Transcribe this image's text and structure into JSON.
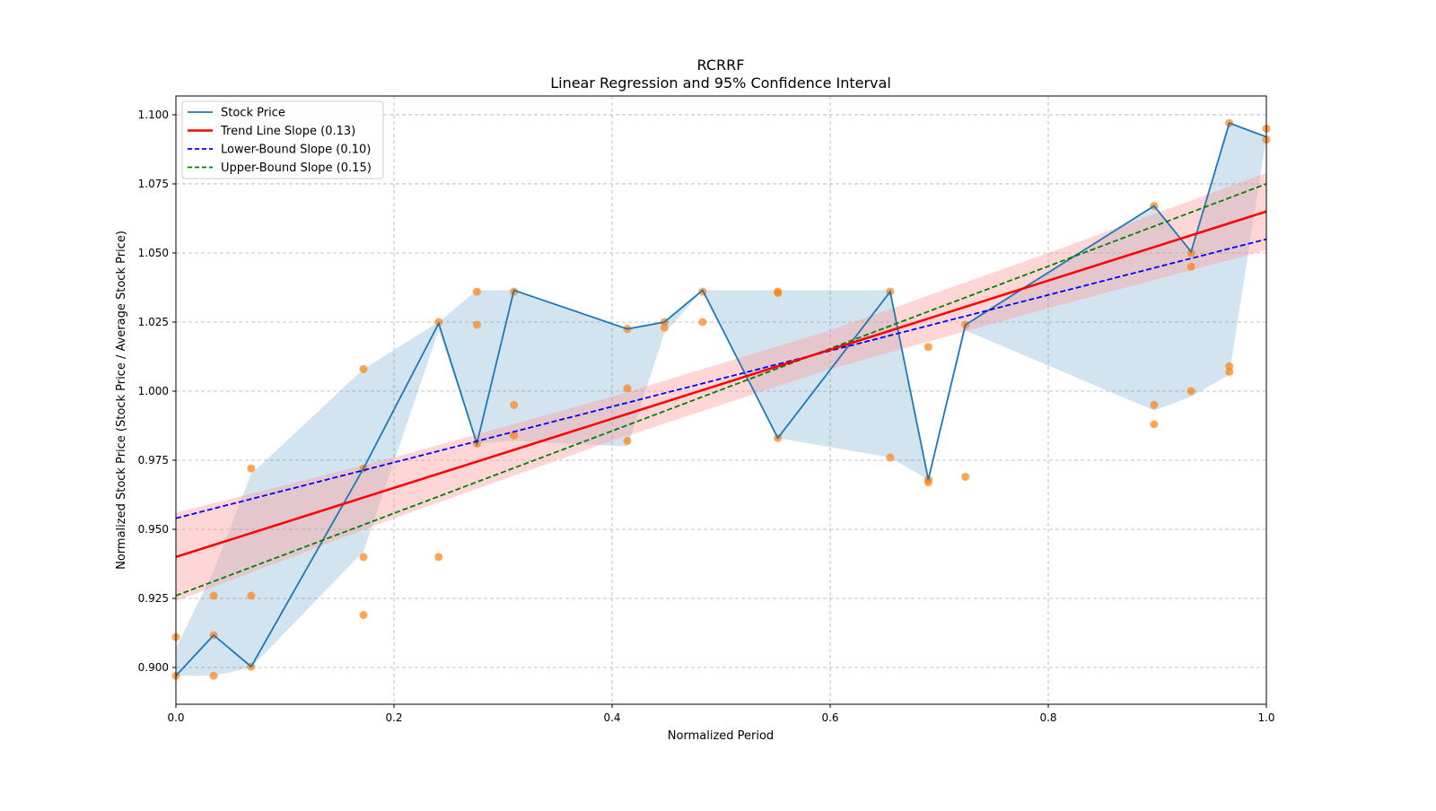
{
  "chart_data": {
    "type": "line",
    "title": "RCRRF",
    "subtitle": "Linear Regression and 95% Confidence Interval",
    "xlabel": "Normalized Period",
    "ylabel": "Normalized Stock Price (Stock Price / Average Stock Price)",
    "xlim": [
      0,
      1
    ],
    "ylim": [
      0.8867,
      1.1068
    ],
    "xticks": [
      0,
      0.2,
      0.4,
      0.6,
      0.8,
      1.0
    ],
    "xtick_labels": [
      "0.0",
      "0.2",
      "0.4",
      "0.6",
      "0.8",
      "1.0"
    ],
    "yticks": [
      0.9,
      0.925,
      0.95,
      0.975,
      1.0,
      1.025,
      1.05,
      1.075,
      1.1
    ],
    "ytick_labels": [
      "0.900",
      "0.925",
      "0.950",
      "0.975",
      "1.000",
      "1.025",
      "1.050",
      "1.075",
      "1.100"
    ],
    "grid": true,
    "legend_position": "top-left",
    "legend": [
      {
        "label": "Stock Price",
        "color": "#1f77b4",
        "style": "solid"
      },
      {
        "label": "Trend Line Slope (0.13)",
        "color": "#ff0000",
        "style": "solid"
      },
      {
        "label": "Lower-Bound Slope (0.10)",
        "color": "#0000ff",
        "style": "dashed"
      },
      {
        "label": "Upper-Bound Slope (0.15)",
        "color": "#008000",
        "style": "dashed"
      }
    ],
    "stock_price": {
      "x": [
        0,
        0.0346,
        0.069,
        0.172,
        0.241,
        0.276,
        0.31,
        0.414,
        0.448,
        0.483,
        0.552,
        0.655,
        0.69,
        0.724,
        0.897,
        0.931,
        0.966,
        1.0
      ],
      "y": [
        0.897,
        0.9117,
        0.9003,
        0.972,
        1.0245,
        0.981,
        1.0365,
        1.0225,
        1.025,
        1.0365,
        0.983,
        1.036,
        0.968,
        1.024,
        1.067,
        1.0505,
        1.097,
        1.092
      ]
    },
    "stock_band": {
      "x": [
        0,
        0.0346,
        0.069,
        0.172,
        0.241,
        0.276,
        0.31,
        0.414,
        0.448,
        0.483,
        0.552,
        0.655,
        0.69,
        0.724,
        0.897,
        0.931,
        0.966,
        1.0
      ],
      "upper": [
        0.907,
        0.935,
        0.97,
        1.008,
        1.025,
        1.0365,
        1.0365,
        1.0225,
        1.025,
        1.0365,
        1.0365,
        1.0365,
        0.968,
        1.024,
        1.067,
        1.0505,
        1.097,
        1.092
      ],
      "lower": [
        0.897,
        0.897,
        0.9,
        0.942,
        1.022,
        0.981,
        0.982,
        0.98,
        1.021,
        1.0365,
        0.983,
        0.976,
        0.968,
        1.022,
        0.993,
        0.998,
        1.006,
        1.092
      ],
      "color": "#1f77b4"
    },
    "scatter": {
      "color": "#ff7f0e",
      "points": [
        [
          0,
          0.911
        ],
        [
          0,
          0.897
        ],
        [
          0.0346,
          0.9117
        ],
        [
          0.0346,
          0.926
        ],
        [
          0.0346,
          0.897
        ],
        [
          0.069,
          0.972
        ],
        [
          0.069,
          0.926
        ],
        [
          0.069,
          0.9003
        ],
        [
          0.172,
          1.008
        ],
        [
          0.172,
          0.972
        ],
        [
          0.172,
          0.94
        ],
        [
          0.172,
          0.919
        ],
        [
          0.241,
          1.025
        ],
        [
          0.241,
          0.94
        ],
        [
          0.276,
          1.036
        ],
        [
          0.276,
          1.024
        ],
        [
          0.276,
          0.981
        ],
        [
          0.31,
          1.036
        ],
        [
          0.31,
          0.995
        ],
        [
          0.31,
          0.984
        ],
        [
          0.414,
          1.0225
        ],
        [
          0.414,
          1.001
        ],
        [
          0.414,
          0.982
        ],
        [
          0.448,
          1.025
        ],
        [
          0.448,
          1.023
        ],
        [
          0.483,
          1.036
        ],
        [
          0.483,
          1.025
        ],
        [
          0.552,
          1.036
        ],
        [
          0.552,
          1.0355
        ],
        [
          0.552,
          0.983
        ],
        [
          0.655,
          1.036
        ],
        [
          0.655,
          0.976
        ],
        [
          0.69,
          1.016
        ],
        [
          0.69,
          0.968
        ],
        [
          0.69,
          0.967
        ],
        [
          0.724,
          1.024
        ],
        [
          0.724,
          0.969
        ],
        [
          0.897,
          1.067
        ],
        [
          0.897,
          0.995
        ],
        [
          0.897,
          0.988
        ],
        [
          0.931,
          1.05
        ],
        [
          0.931,
          1.045
        ],
        [
          0.931,
          1.0
        ],
        [
          0.966,
          1.097
        ],
        [
          0.966,
          1.009
        ],
        [
          0.966,
          1.007
        ],
        [
          1.0,
          1.095
        ],
        [
          1.0,
          1.091
        ]
      ]
    },
    "trend_line": {
      "slope": 0.125,
      "intercept": 0.94,
      "color": "#ff0000"
    },
    "lower_bound_line": {
      "slope": 0.101,
      "intercept": 0.954,
      "color": "#0000ff"
    },
    "upper_bound_line": {
      "slope": 0.149,
      "intercept": 0.926,
      "color": "#008000"
    },
    "confidence_interval": {
      "x": [
        0,
        0.2,
        0.4,
        0.6,
        0.8,
        1.0
      ],
      "lower": [
        0.924,
        0.954,
        0.982,
        1.008,
        1.03,
        1.051
      ],
      "upper": [
        0.956,
        0.976,
        0.998,
        1.022,
        1.05,
        1.079
      ],
      "color": "#ff9999"
    }
  }
}
